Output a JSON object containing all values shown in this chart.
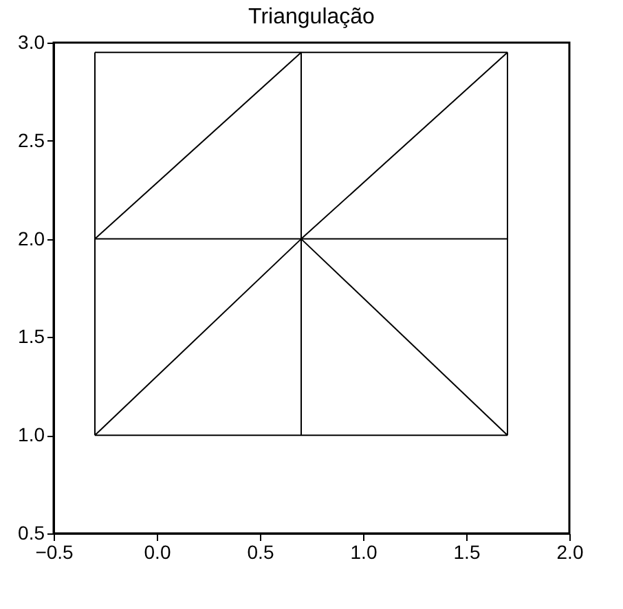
{
  "chart_data": {
    "type": "line",
    "title": "Triangulação",
    "xlim": [
      -0.5,
      2.0
    ],
    "ylim": [
      0.5,
      3.0
    ],
    "xticks": [
      {
        "value": -0.5,
        "label": "−0.5"
      },
      {
        "value": 0,
        "label": "0.0"
      },
      {
        "value": 0.5,
        "label": "0.5"
      },
      {
        "value": 1,
        "label": "1.0"
      },
      {
        "value": 1.5,
        "label": "1.5"
      },
      {
        "value": 2,
        "label": "2.0"
      }
    ],
    "yticks": [
      {
        "value": 0.5,
        "label": "0.5"
      },
      {
        "value": 1,
        "label": "1.0"
      },
      {
        "value": 1.5,
        "label": "1.5"
      },
      {
        "value": 2,
        "label": "2.0"
      },
      {
        "value": 2.5,
        "label": "2.5"
      },
      {
        "value": 3,
        "label": "3.0"
      }
    ],
    "grid": false,
    "legend": false,
    "marker": "none",
    "line_style": "solid",
    "series": [
      {
        "color": "#000000",
        "x": [
          -0.3,
          0.7,
          1.7
        ],
        "values": [
          1,
          1,
          1
        ]
      },
      {
        "color": "#000000",
        "x": [
          -0.3,
          0.7,
          1.7
        ],
        "values": [
          2,
          2,
          2
        ]
      },
      {
        "color": "#000000",
        "x": [
          -0.3,
          0.7,
          1.7
        ],
        "values": [
          2.95,
          2.95,
          2.95
        ]
      },
      {
        "color": "#000000",
        "x": [
          -0.3,
          -0.3,
          -0.3
        ],
        "values": [
          1,
          2,
          2.95
        ]
      },
      {
        "color": "#000000",
        "x": [
          0.7,
          0.7,
          0.7
        ],
        "values": [
          1,
          2,
          2.95
        ]
      },
      {
        "color": "#000000",
        "x": [
          1.7,
          1.7,
          1.7
        ],
        "values": [
          1,
          2,
          2.95
        ]
      },
      {
        "color": "#000000",
        "x": [
          -0.3,
          0.7
        ],
        "values": [
          2,
          2.95
        ]
      },
      {
        "color": "#000000",
        "x": [
          -0.3,
          0.7,
          1.7
        ],
        "values": [
          1,
          2,
          2.95
        ]
      },
      {
        "color": "#000000",
        "x": [
          0.7,
          1.7
        ],
        "values": [
          2,
          1
        ]
      }
    ]
  }
}
